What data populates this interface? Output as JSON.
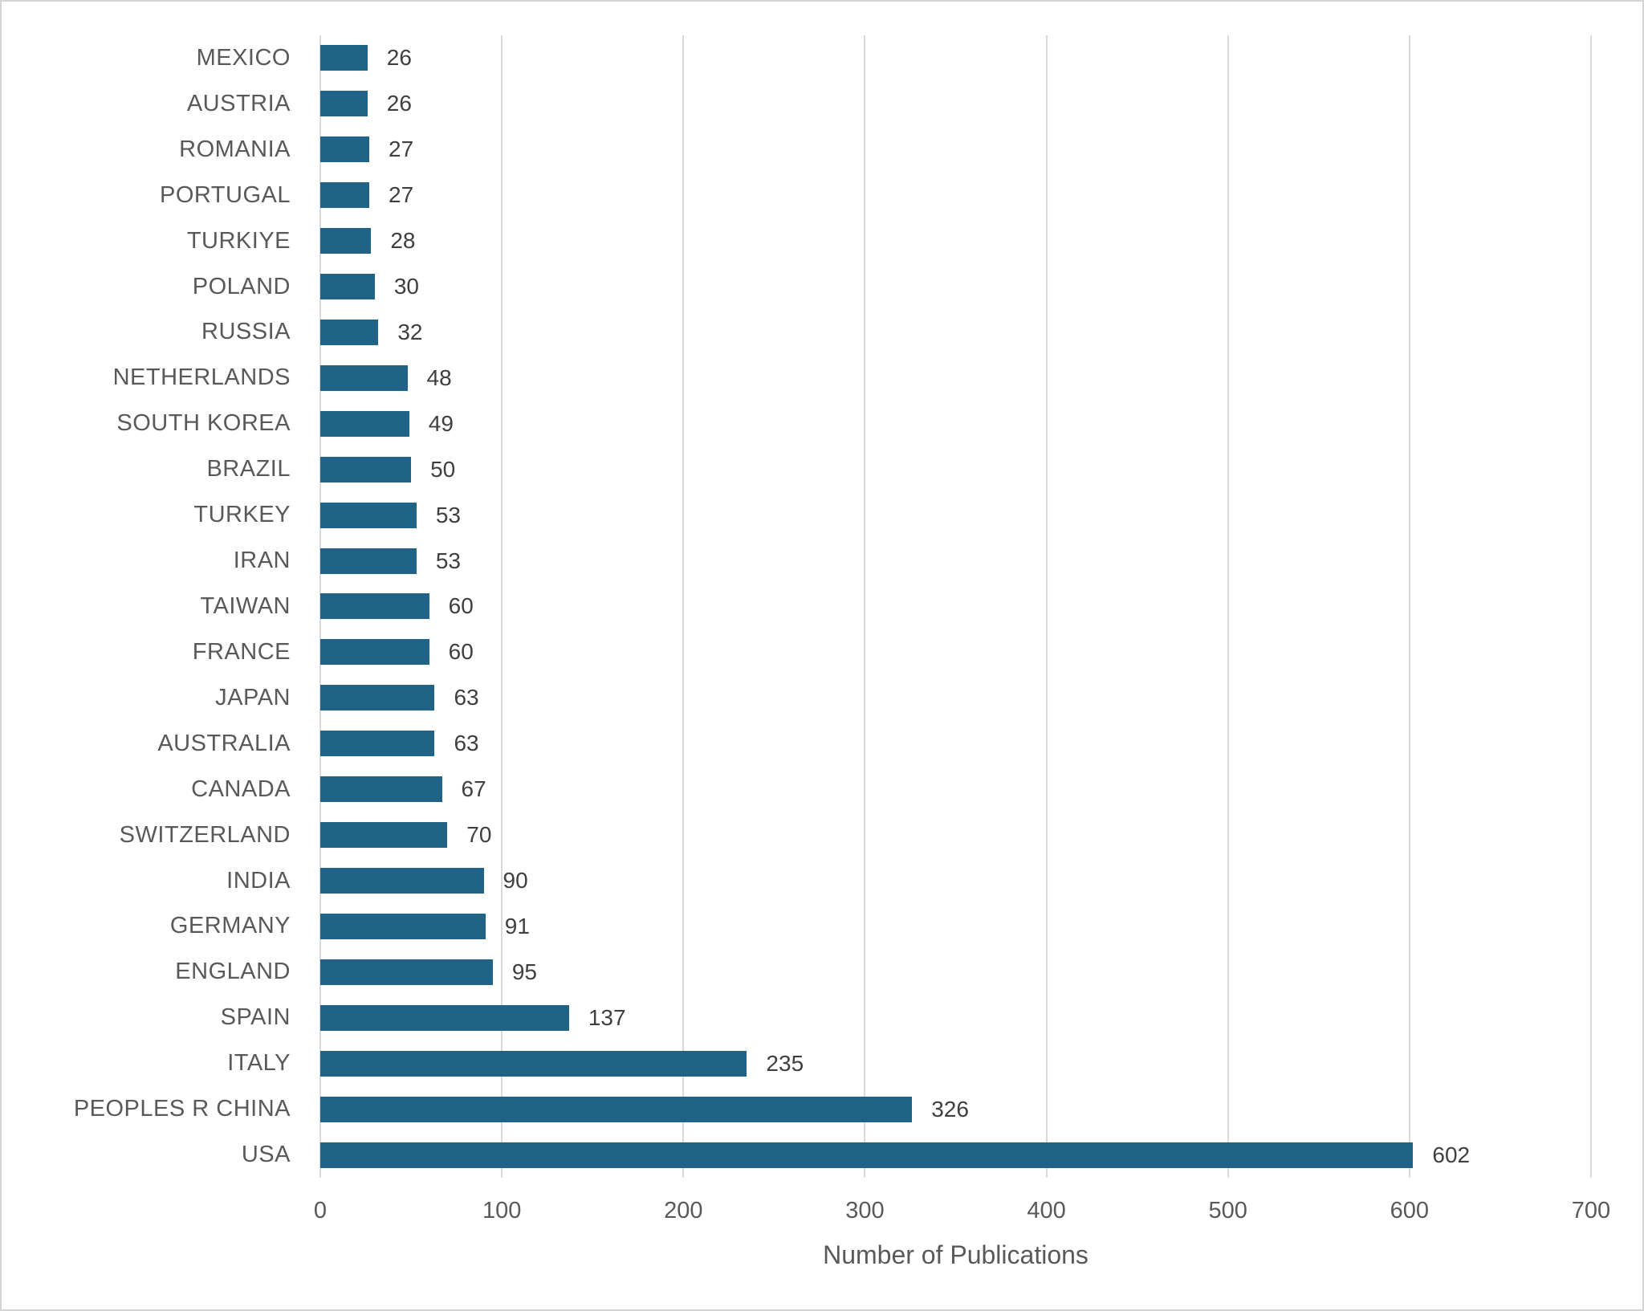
{
  "chart_data": {
    "type": "bar",
    "orientation": "horizontal",
    "title": "",
    "xlabel": "Number of Publications",
    "ylabel": "",
    "xlim": [
      0,
      700
    ],
    "x_ticks": [
      0,
      100,
      200,
      300,
      400,
      500,
      600,
      700
    ],
    "grid": true,
    "legend": false,
    "categories_top_to_bottom": [
      "MEXICO",
      "AUSTRIA",
      "ROMANIA",
      "PORTUGAL",
      "TURKIYE",
      "POLAND",
      "RUSSIA",
      "NETHERLANDS",
      "SOUTH KOREA",
      "BRAZIL",
      "TURKEY",
      "IRAN",
      "TAIWAN",
      "FRANCE",
      "JAPAN",
      "AUSTRALIA",
      "CANADA",
      "SWITZERLAND",
      "INDIA",
      "GERMANY",
      "ENGLAND",
      "SPAIN",
      "ITALY",
      "PEOPLES R CHINA",
      "USA"
    ],
    "values": [
      26,
      26,
      27,
      27,
      28,
      30,
      32,
      48,
      49,
      50,
      53,
      53,
      60,
      60,
      63,
      63,
      67,
      70,
      90,
      91,
      95,
      137,
      235,
      326,
      602
    ],
    "data_labels": [
      "26",
      "26",
      "27",
      "27",
      "28",
      "30",
      "32",
      "48",
      "49",
      "50",
      "53",
      "53",
      "60",
      "60",
      "63",
      "63",
      "67",
      "70",
      "90",
      "91",
      "95",
      "137",
      "235",
      "326",
      "602"
    ],
    "colors": {
      "bar": "#1F6387",
      "category_label": "#595959",
      "value_label": "#3F3F3F",
      "tick_label": "#595959",
      "axis_title": "#595959",
      "gridline": "#D9D9D9",
      "background": "#FFFFFF",
      "border": "#D4D4D4"
    }
  }
}
